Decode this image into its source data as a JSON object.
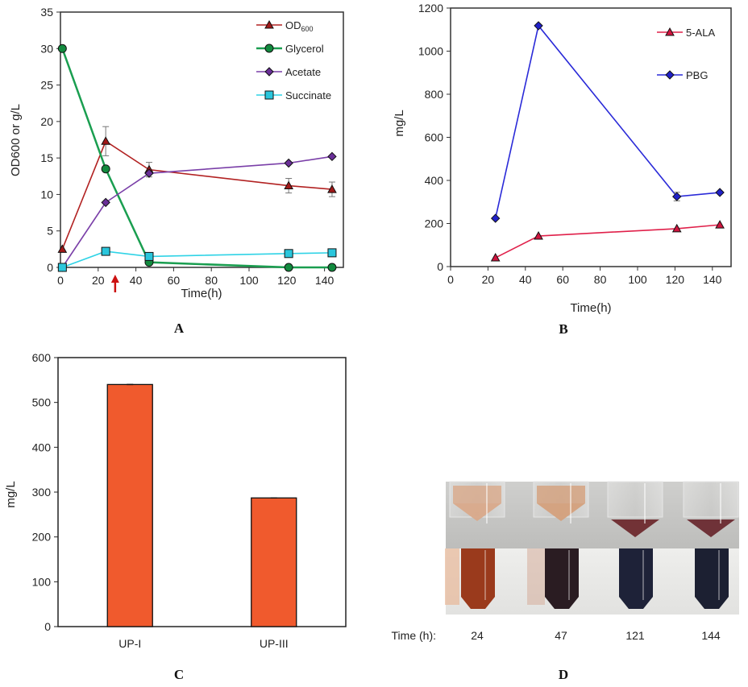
{
  "figure": {
    "panel_labels": [
      "A",
      "B",
      "C",
      "D"
    ]
  },
  "chart_data": [
    {
      "id": "A",
      "type": "line",
      "title": "",
      "xlabel": "Time(h)",
      "ylabel": "OD600 or g/L",
      "xlim": [
        0,
        150
      ],
      "ylim": [
        0,
        35
      ],
      "xticks": [
        0,
        20,
        40,
        60,
        80,
        100,
        120,
        140
      ],
      "yticks": [
        0,
        5,
        10,
        15,
        20,
        25,
        30,
        35
      ],
      "grid": false,
      "legend_position": "top-right",
      "annotation": {
        "type": "arrow",
        "x": 29,
        "color": "#cc1111",
        "meaning": "marker below x-axis"
      },
      "series": [
        {
          "name": "OD600",
          "label_main": "OD",
          "label_sub": "600",
          "color": "#b22222",
          "marker": "triangle",
          "marker_fill": "#a01818",
          "x": [
            1,
            24,
            47,
            121,
            144
          ],
          "y": [
            2.5,
            17.3,
            13.4,
            11.2,
            10.7
          ],
          "err": [
            0,
            2.0,
            1.0,
            1.0,
            1.0
          ]
        },
        {
          "name": "Glycerol",
          "color": "#1a9e50",
          "marker": "circle",
          "marker_fill": "#128a3e",
          "x": [
            1,
            24,
            47,
            121,
            144
          ],
          "y": [
            30,
            13.5,
            0.7,
            0,
            0
          ],
          "err": [
            0,
            0,
            0,
            0,
            0
          ]
        },
        {
          "name": "Acetate",
          "color": "#7a3fa8",
          "marker": "diamond",
          "marker_fill": "#6a2f98",
          "x": [
            1,
            24,
            47,
            121,
            144
          ],
          "y": [
            0,
            8.9,
            12.9,
            14.3,
            15.2
          ],
          "err": [
            0,
            0,
            0,
            0,
            0
          ]
        },
        {
          "name": "Succinate",
          "color": "#2fd3e6",
          "marker": "square",
          "marker_fill": "#2ac6dc",
          "x": [
            1,
            24,
            47,
            121,
            144
          ],
          "y": [
            0,
            2.2,
            1.5,
            1.9,
            2.0
          ],
          "err": [
            0,
            0,
            0,
            0,
            0
          ]
        }
      ]
    },
    {
      "id": "B",
      "type": "line",
      "title": "",
      "xlabel": "Time(h)",
      "ylabel": "mg/L",
      "xlim": [
        0,
        150
      ],
      "ylim": [
        0,
        1200
      ],
      "xticks": [
        0,
        20,
        40,
        60,
        80,
        100,
        120,
        140
      ],
      "yticks": [
        0,
        200,
        400,
        600,
        800,
        1000,
        1200
      ],
      "grid": false,
      "legend_position": "top-right",
      "series": [
        {
          "name": "5-ALA",
          "color": "#e0204a",
          "marker": "triangle",
          "marker_fill": "#d0143e",
          "x": [
            24,
            47,
            121,
            144
          ],
          "y": [
            41,
            142,
            176,
            194
          ],
          "err": [
            0,
            0,
            0,
            0
          ]
        },
        {
          "name": "PBG",
          "color": "#2a2ad8",
          "marker": "diamond",
          "marker_fill": "#2020c8",
          "x": [
            24,
            47,
            121,
            144
          ],
          "y": [
            224,
            1118,
            325,
            344
          ],
          "err": [
            0,
            0,
            20,
            0
          ]
        }
      ]
    },
    {
      "id": "C",
      "type": "bar",
      "title": "",
      "xlabel": "",
      "ylabel": "mg/L",
      "categories": [
        "UP-I",
        "UP-III"
      ],
      "values": [
        540,
        287
      ],
      "ylim": [
        0,
        600
      ],
      "yticks": [
        0,
        100,
        200,
        300,
        400,
        500,
        600
      ],
      "grid": false,
      "bar_color": "#f05a2d"
    }
  ],
  "photo_panel": {
    "id": "D",
    "time_label": "Time (h):",
    "times": [
      "24",
      "47",
      "121",
      "144"
    ],
    "top_pellet_colors": [
      "#d9a98a",
      "#d4a07c",
      "#6e2a2e",
      "#6a2a30"
    ],
    "bottom_liquid_colors": [
      "#9a3a1c",
      "#2a1c22",
      "#1e2238",
      "#1c2032"
    ]
  }
}
